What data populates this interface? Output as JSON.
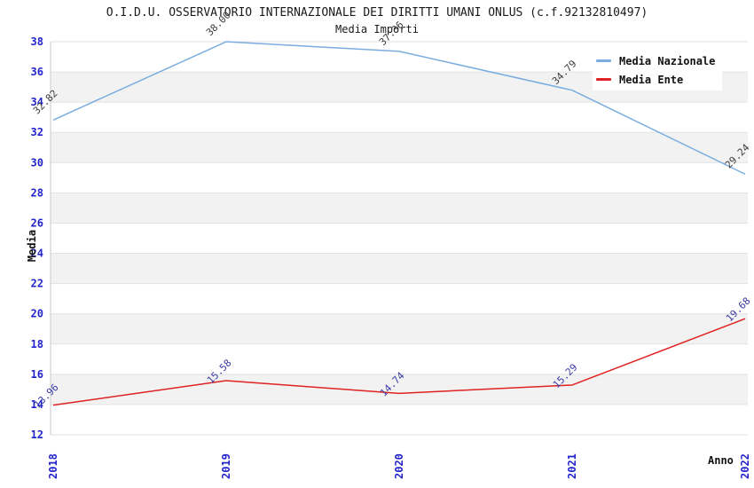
{
  "header": {
    "title": "O.I.D.U. OSSERVATORIO INTERNAZIONALE DEI DIRITTI UMANI ONLUS (c.f.92132810497)",
    "subtitle": "Media Importi"
  },
  "colors": {
    "national_line": "#7aade0",
    "entity_line": "#e02222",
    "tick_label": "#2323cc",
    "band_gray": "#f2f2f2",
    "gridline": "#e2e2e2",
    "axis_line": "#c9c9c9",
    "national_value_label": "#3c3c3c",
    "entity_value_label": "#3a3aa6"
  },
  "chart_data": {
    "type": "line",
    "title": "O.I.D.U. OSSERVATORIO INTERNAZIONALE DEI DIRITTI UMANI ONLUS (c.f.92132810497)",
    "subtitle": "Media Importi",
    "xlabel": "Anno",
    "ylabel": "Media",
    "x": [
      2018,
      2019,
      2020,
      2021,
      2022
    ],
    "series": [
      {
        "name": "Media Nazionale",
        "color": "#7aade0",
        "label_color": "#3c3c3c",
        "values": [
          32.82,
          38.0,
          37.36,
          34.79,
          29.24
        ]
      },
      {
        "name": "Media Ente",
        "color": "#e02222",
        "label_color": "#3a3aa6",
        "values": [
          13.96,
          15.58,
          14.74,
          15.29,
          19.68
        ]
      }
    ],
    "ylim": [
      12,
      38
    ],
    "ytick_step": 2,
    "grid": "horizontal-bands-alternating",
    "legend_position": "top-right",
    "tick_label_color": "#2323cc",
    "value_labels_rotated_deg": -45,
    "x_tick_labels_rotated_deg": -90
  }
}
